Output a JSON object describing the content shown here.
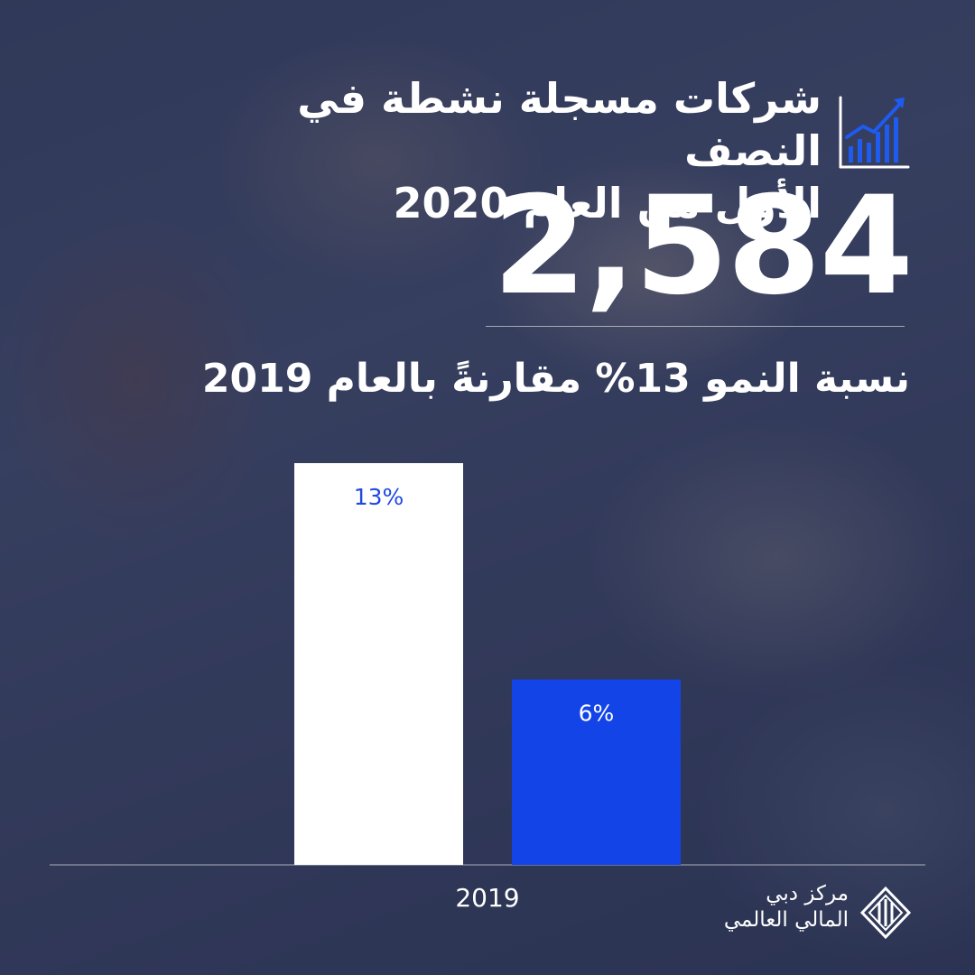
{
  "header": {
    "title_line1": "شركات مسجلة نشطة في النصف",
    "title_line2": "الأول من العام 2020",
    "icon": "growth-chart-icon",
    "big_number": "2,584",
    "subtitle": "نسبة النمو 13% مقارنةً بالعام 2019"
  },
  "chart_data": {
    "type": "bar",
    "categories": [
      "2019"
    ],
    "series": [
      {
        "values": [
          13
        ],
        "color": "#ffffff",
        "label_color": "#1e49e2",
        "data_label": "13%"
      },
      {
        "values": [
          6
        ],
        "color": "#1244e8",
        "label_color": "#ffffff",
        "data_label": "6%"
      }
    ],
    "ylim": [
      0,
      13
    ],
    "grid": false,
    "legend": "none",
    "title": "",
    "xlabel": "",
    "ylabel": ""
  },
  "logo": {
    "line1": "مركز دبي",
    "line2": "المالي العالمي",
    "icon": "difc-logo-icon"
  },
  "colors": {
    "accent": "#1244e8",
    "text": "#ffffff"
  }
}
